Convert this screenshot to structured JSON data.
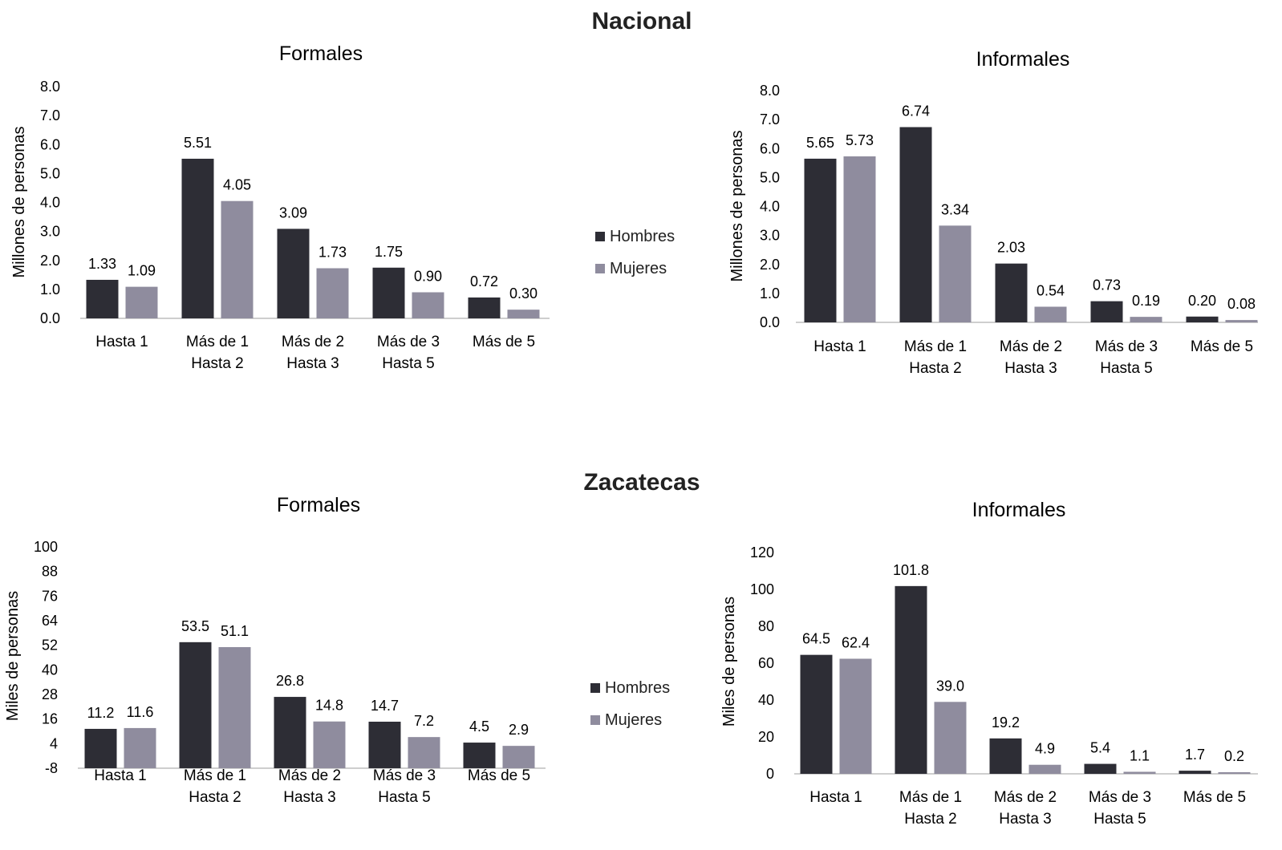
{
  "sections": {
    "nacional": "Nacional",
    "zacatecas": "Zacatecas"
  },
  "legend": {
    "hombres": "Hombres",
    "mujeres": "Mujeres"
  },
  "colors": {
    "hombres": "#2d2d35",
    "mujeres": "#8f8c9e",
    "axis": "#bdbdbd"
  },
  "chart_data": [
    {
      "type": "bar",
      "title": "Formales",
      "ylabel": "Millones de personas",
      "categories": [
        [
          "Hasta 1"
        ],
        [
          "Más de 1",
          "Hasta 2"
        ],
        [
          "Más de 2",
          "Hasta 3"
        ],
        [
          "Más de 3",
          "Hasta 5"
        ],
        [
          "Más de 5"
        ]
      ],
      "yticks": [
        "0.0",
        "1.0",
        "2.0",
        "3.0",
        "4.0",
        "5.0",
        "6.0",
        "7.0",
        "8.0"
      ],
      "ylim": [
        0,
        8
      ],
      "series": [
        {
          "name": "Hombres",
          "values": [
            1.33,
            5.51,
            3.09,
            1.75,
            0.72
          ],
          "labels": [
            "1.33",
            "5.51",
            "3.09",
            "1.75",
            "0.72"
          ]
        },
        {
          "name": "Mujeres",
          "values": [
            1.09,
            4.05,
            1.73,
            0.9,
            0.3
          ],
          "labels": [
            "1.09",
            "4.05",
            "1.73",
            "0.90",
            "0.30"
          ]
        }
      ]
    },
    {
      "type": "bar",
      "title": "Informales",
      "ylabel": "Millones de personas",
      "categories": [
        [
          "Hasta 1"
        ],
        [
          "Más de 1",
          "Hasta 2"
        ],
        [
          "Más de 2",
          "Hasta 3"
        ],
        [
          "Más de 3",
          "Hasta 5"
        ],
        [
          "Más de 5"
        ]
      ],
      "yticks": [
        "0.0",
        "1.0",
        "2.0",
        "3.0",
        "4.0",
        "5.0",
        "6.0",
        "7.0",
        "8.0"
      ],
      "ylim": [
        0,
        8
      ],
      "series": [
        {
          "name": "Hombres",
          "values": [
            5.65,
            6.74,
            2.03,
            0.73,
            0.2
          ],
          "labels": [
            "5.65",
            "6.74",
            "2.03",
            "0.73",
            "0.20"
          ]
        },
        {
          "name": "Mujeres",
          "values": [
            5.73,
            3.34,
            0.54,
            0.19,
            0.08
          ],
          "labels": [
            "5.73",
            "3.34",
            "0.54",
            "0.19",
            "0.08"
          ]
        }
      ]
    },
    {
      "type": "bar",
      "title": "Formales",
      "ylabel": "Miles de personas",
      "categories": [
        [
          "Hasta 1"
        ],
        [
          "Más de 1",
          "Hasta 2"
        ],
        [
          "Más de 2",
          "Hasta 3"
        ],
        [
          "Más de 3",
          "Hasta 5"
        ],
        [
          "Más de 5"
        ]
      ],
      "yticks": [
        "-8",
        "4",
        "16",
        "28",
        "40",
        "52",
        "64",
        "76",
        "88",
        "100"
      ],
      "ylim": [
        -8,
        100
      ],
      "series": [
        {
          "name": "Hombres",
          "values": [
            11.2,
            53.5,
            26.8,
            14.7,
            4.5
          ],
          "labels": [
            "11.2",
            "53.5",
            "26.8",
            "14.7",
            "4.5"
          ]
        },
        {
          "name": "Mujeres",
          "values": [
            11.6,
            51.1,
            14.8,
            7.2,
            2.9
          ],
          "labels": [
            "11.6",
            "51.1",
            "14.8",
            "7.2",
            "2.9"
          ]
        }
      ]
    },
    {
      "type": "bar",
      "title": "Informales",
      "ylabel": "Miles de personas",
      "categories": [
        [
          "Hasta 1"
        ],
        [
          "Más de 1",
          "Hasta 2"
        ],
        [
          "Más de 2",
          "Hasta 3"
        ],
        [
          "Más de 3",
          "Hasta 5"
        ],
        [
          "Más de 5"
        ]
      ],
      "yticks": [
        "0",
        "20",
        "40",
        "60",
        "80",
        "100",
        "120"
      ],
      "ylim": [
        0,
        120
      ],
      "series": [
        {
          "name": "Hombres",
          "values": [
            64.5,
            101.8,
            19.2,
            5.4,
            1.7
          ],
          "labels": [
            "64.5",
            "101.8",
            "19.2",
            "5.4",
            "1.7"
          ]
        },
        {
          "name": "Mujeres",
          "values": [
            62.4,
            39.0,
            4.9,
            1.1,
            0.2
          ],
          "labels": [
            "62.4",
            "39.0",
            "4.9",
            "1.1",
            "0.2"
          ]
        }
      ]
    }
  ]
}
